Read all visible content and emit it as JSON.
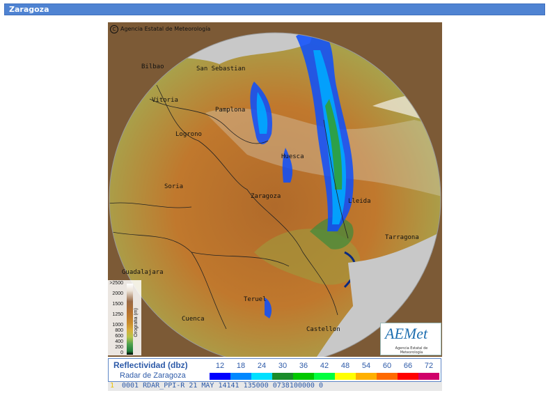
{
  "header": {
    "title": "Zaragoza"
  },
  "map": {
    "copyright": "Agencia Estatal de Meteorología",
    "cities": [
      {
        "name": "Bilbao"
      },
      {
        "name": "San Sebastian"
      },
      {
        "name": "Vitoria"
      },
      {
        "name": "Pamplona"
      },
      {
        "name": "Logrono"
      },
      {
        "name": "Huesca"
      },
      {
        "name": "Soria"
      },
      {
        "name": "Zaragoza"
      },
      {
        "name": "Lleida"
      },
      {
        "name": "Tarragona"
      },
      {
        "name": "Guadalajara"
      },
      {
        "name": "Teruel"
      },
      {
        "name": "Cuenca"
      },
      {
        "name": "Castellon"
      }
    ],
    "orography": {
      "title": "Orografia (m)",
      "levels": [
        ">2500",
        "2000",
        "1500",
        "1250",
        "1000",
        "800",
        "600",
        "400",
        "200",
        "0"
      ]
    },
    "logo": {
      "mark": "AEMet",
      "subtitle": "Agencia Estatal de Meteorología"
    }
  },
  "legend": {
    "title": "Reflectividad (dbz)",
    "subtitle": "Radar de Zaragoza",
    "scale": [
      {
        "value": "12",
        "color": "#0000ff"
      },
      {
        "value": "18",
        "color": "#0088ff"
      },
      {
        "value": "24",
        "color": "#00e0ff"
      },
      {
        "value": "30",
        "color": "#1a8c2a"
      },
      {
        "value": "36",
        "color": "#00c800"
      },
      {
        "value": "42",
        "color": "#00ff40"
      },
      {
        "value": "48",
        "color": "#ffff00"
      },
      {
        "value": "54",
        "color": "#ffb000"
      },
      {
        "value": "60",
        "color": "#ff6a00"
      },
      {
        "value": "66",
        "color": "#ff0000"
      },
      {
        "value": "72",
        "color": "#d0006a"
      }
    ]
  },
  "status": {
    "marker": "1",
    "line": "0001 RDAR_PPI-R   21 MAY 14141 135000 0738100000 0"
  }
}
